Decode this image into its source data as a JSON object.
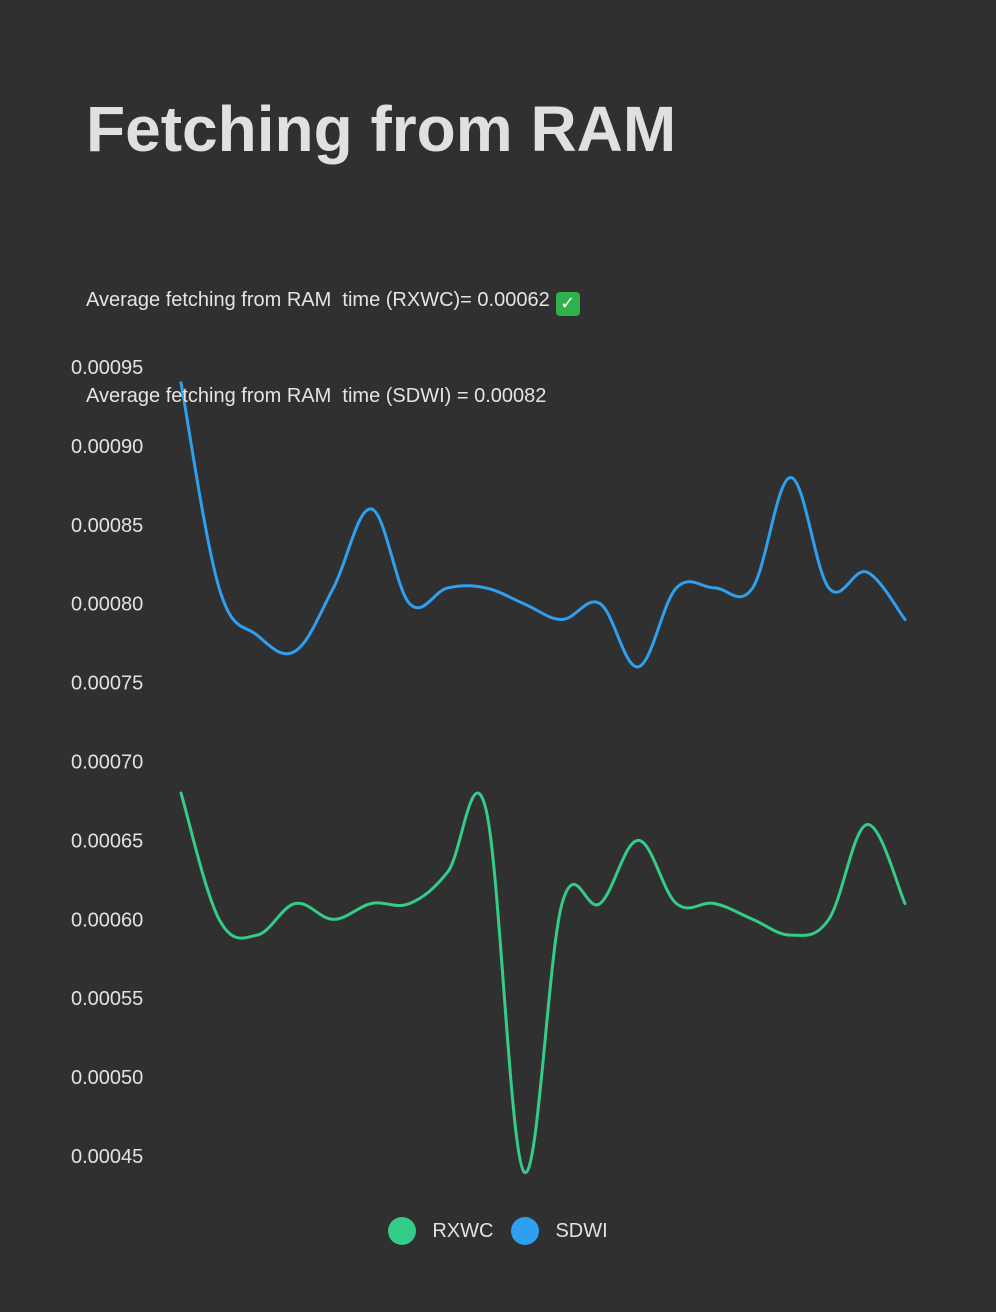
{
  "title": "Fetching from RAM",
  "summary": {
    "line1": "Average fetching from RAM  time (RXWC)= 0.00062",
    "line1_icon": "check-mark-icon",
    "line2": "Average fetching from RAM  time (SDWI) = 0.00082"
  },
  "colors": {
    "background": "#303030",
    "rxwc": "#33cc88",
    "sdwi": "#2f9ff0",
    "text": "#e2e2e2",
    "check": "#2fb24c"
  },
  "chart_data": {
    "type": "line",
    "title": "Fetching from RAM",
    "xlabel": "",
    "ylabel": "",
    "ylim": [
      0.00045,
      0.00095
    ],
    "yticks": [
      "0.00095",
      "0.00090",
      "0.00085",
      "0.00080",
      "0.00075",
      "0.00070",
      "0.00065",
      "0.00060",
      "0.00055",
      "0.00050",
      "0.00045"
    ],
    "grid": false,
    "legend_position": "bottom-center",
    "x": [
      1,
      2,
      3,
      4,
      5,
      6,
      7,
      8,
      9,
      10,
      11,
      12,
      13,
      14,
      15,
      16,
      17,
      18,
      19,
      20
    ],
    "series": [
      {
        "name": "RXWC",
        "color": "#33cc88",
        "values": [
          0.00068,
          0.0006,
          0.00059,
          0.00061,
          0.0006,
          0.00061,
          0.00061,
          0.00063,
          0.00067,
          0.00044,
          0.00061,
          0.00061,
          0.00065,
          0.00061,
          0.00061,
          0.0006,
          0.00059,
          0.0006,
          0.00066,
          0.00061
        ]
      },
      {
        "name": "SDWI",
        "color": "#2f9ff0",
        "values": [
          0.00094,
          0.00081,
          0.00078,
          0.00077,
          0.00081,
          0.00086,
          0.0008,
          0.00081,
          0.00081,
          0.0008,
          0.00079,
          0.0008,
          0.00076,
          0.00081,
          0.00081,
          0.00081,
          0.00088,
          0.00081,
          0.00082,
          0.00079
        ]
      }
    ]
  }
}
